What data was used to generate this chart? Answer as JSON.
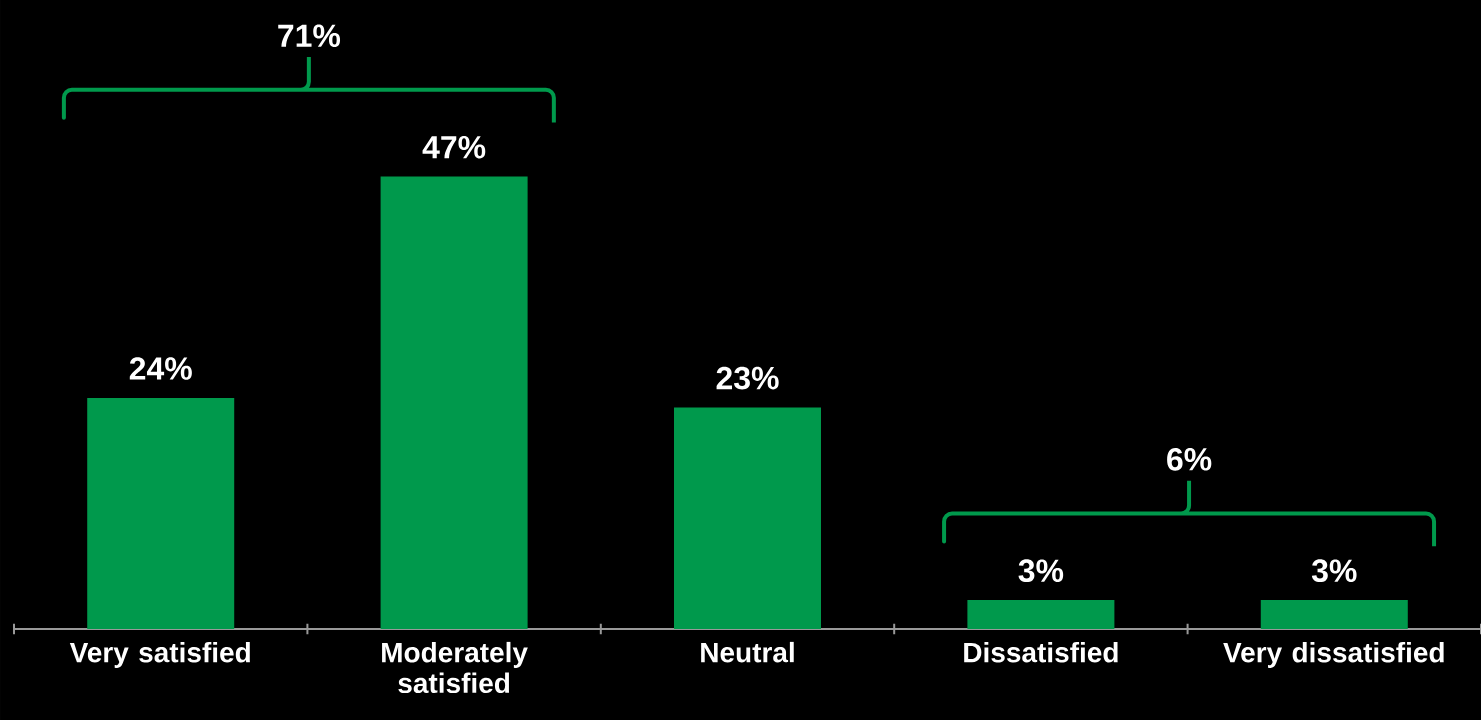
{
  "chart_data": {
    "type": "bar",
    "categories": [
      "Very satisfied",
      "Moderately satisfied",
      "Neutral",
      "Dissatisfied",
      "Very dissatisfied"
    ],
    "values": [
      24,
      47,
      23,
      3,
      3
    ],
    "value_labels": [
      "24%",
      "47%",
      "23%",
      "3%",
      "3%"
    ],
    "color": "#00994c",
    "annotations": [
      "71%",
      "6%"
    ]
  }
}
